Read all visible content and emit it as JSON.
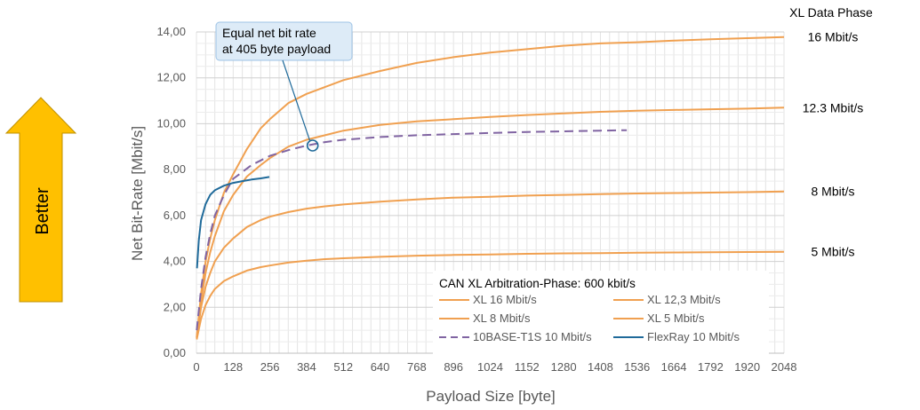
{
  "chart_data": {
    "type": "line",
    "title": "",
    "xlabel": "Payload Size [byte]",
    "ylabel": "Net Bit-Rate [Mbit/s]",
    "xlim": [
      0,
      2048
    ],
    "ylim": [
      0,
      14
    ],
    "x_ticks": [
      "0",
      "128",
      "256",
      "384",
      "512",
      "640",
      "768",
      "896",
      "1024",
      "1152",
      "1280",
      "1408",
      "1536",
      "1664",
      "1792",
      "1920",
      "2048"
    ],
    "y_ticks": [
      "0,00",
      "2,00",
      "4,00",
      "6,00",
      "8,00",
      "10,00",
      "12,00",
      "14,00"
    ],
    "grid": true,
    "legend_title": "CAN XL Arbitration-Phase: 600 kbit/s",
    "legend_position": "bottom-right",
    "colors": {
      "xl": "#F0A050",
      "t1s": "#8064A2",
      "flexray": "#1F6A9A",
      "better": "#FFC000"
    },
    "series": [
      {
        "name": "XL 16 Mbit/s",
        "color": "#F0A050",
        "dash": false,
        "x": [
          1,
          16,
          32,
          48,
          64,
          96,
          128,
          176,
          224,
          256,
          320,
          384,
          448,
          512,
          640,
          768,
          896,
          1024,
          1152,
          1280,
          1408,
          1536,
          1664,
          1792,
          1920,
          2048
        ],
        "y": [
          0.7,
          2.6,
          4.0,
          5.0,
          5.8,
          7.0,
          7.8,
          8.9,
          9.8,
          10.2,
          10.9,
          11.3,
          11.6,
          11.9,
          12.3,
          12.65,
          12.9,
          13.1,
          13.25,
          13.4,
          13.5,
          13.55,
          13.62,
          13.68,
          13.73,
          13.78
        ]
      },
      {
        "name": "XL 12,3 Mbit/s",
        "color": "#F0A050",
        "dash": false,
        "x": [
          1,
          16,
          32,
          48,
          64,
          96,
          128,
          176,
          224,
          256,
          320,
          384,
          448,
          512,
          640,
          768,
          896,
          1024,
          1152,
          1280,
          1408,
          1536,
          1664,
          1792,
          1920,
          2048
        ],
        "y": [
          0.7,
          2.3,
          3.5,
          4.4,
          5.1,
          6.2,
          6.9,
          7.7,
          8.2,
          8.5,
          9.0,
          9.3,
          9.5,
          9.7,
          9.95,
          10.1,
          10.2,
          10.3,
          10.38,
          10.45,
          10.52,
          10.57,
          10.6,
          10.63,
          10.66,
          10.7
        ]
      },
      {
        "name": "XL 8 Mbit/s",
        "color": "#F0A050",
        "dash": false,
        "x": [
          1,
          16,
          32,
          48,
          64,
          96,
          128,
          176,
          224,
          256,
          320,
          384,
          448,
          512,
          640,
          768,
          896,
          1024,
          1152,
          1280,
          1408,
          1536,
          1664,
          1792,
          1920,
          2048
        ],
        "y": [
          0.65,
          2.0,
          2.9,
          3.5,
          4.0,
          4.6,
          5.0,
          5.5,
          5.8,
          5.95,
          6.15,
          6.3,
          6.4,
          6.48,
          6.6,
          6.7,
          6.78,
          6.82,
          6.87,
          6.9,
          6.93,
          6.96,
          6.98,
          7.0,
          7.02,
          7.05
        ]
      },
      {
        "name": "XL 5 Mbit/s",
        "color": "#F0A050",
        "dash": false,
        "x": [
          1,
          16,
          32,
          48,
          64,
          96,
          128,
          176,
          224,
          256,
          320,
          384,
          448,
          512,
          640,
          768,
          896,
          1024,
          1152,
          1280,
          1408,
          1536,
          1664,
          1792,
          1920,
          2048
        ],
        "y": [
          0.6,
          1.5,
          2.1,
          2.5,
          2.8,
          3.15,
          3.35,
          3.6,
          3.75,
          3.82,
          3.95,
          4.03,
          4.1,
          4.14,
          4.2,
          4.25,
          4.28,
          4.3,
          4.33,
          4.35,
          4.36,
          4.38,
          4.39,
          4.4,
          4.41,
          4.42
        ]
      },
      {
        "name": "10BASE-T1S 10 Mbit/s",
        "color": "#8064A2",
        "dash": true,
        "x": [
          1,
          16,
          32,
          48,
          64,
          96,
          128,
          192,
          256,
          320,
          384,
          448,
          512,
          640,
          768,
          896,
          1024,
          1152,
          1280,
          1408,
          1500
        ],
        "y": [
          1.0,
          2.8,
          4.2,
          5.2,
          6.0,
          6.9,
          7.6,
          8.2,
          8.6,
          8.85,
          9.05,
          9.2,
          9.3,
          9.42,
          9.5,
          9.55,
          9.6,
          9.64,
          9.67,
          9.7,
          9.72
        ]
      },
      {
        "name": "FlexRay 10 Mbit/s",
        "color": "#1F6A9A",
        "dash": false,
        "x": [
          2,
          8,
          16,
          32,
          48,
          64,
          96,
          128,
          160,
          192,
          224,
          254
        ],
        "y": [
          3.7,
          4.9,
          5.8,
          6.5,
          6.9,
          7.1,
          7.3,
          7.42,
          7.5,
          7.57,
          7.62,
          7.68
        ]
      }
    ],
    "right_labels": [
      {
        "text": "16 Mbit/s",
        "y": 13.78
      },
      {
        "text": "12.3 Mbit/s",
        "y": 10.7
      },
      {
        "text": "8 Mbit/s",
        "y": 7.05
      },
      {
        "text": "5 Mbit/s",
        "y": 4.42
      }
    ],
    "right_header": "XL Data Phase",
    "annotation": {
      "lines": [
        "Equal net bit rate",
        "at 405 byte payload"
      ],
      "point": {
        "x": 405,
        "y": 9.05
      }
    },
    "better_label": "Better"
  }
}
